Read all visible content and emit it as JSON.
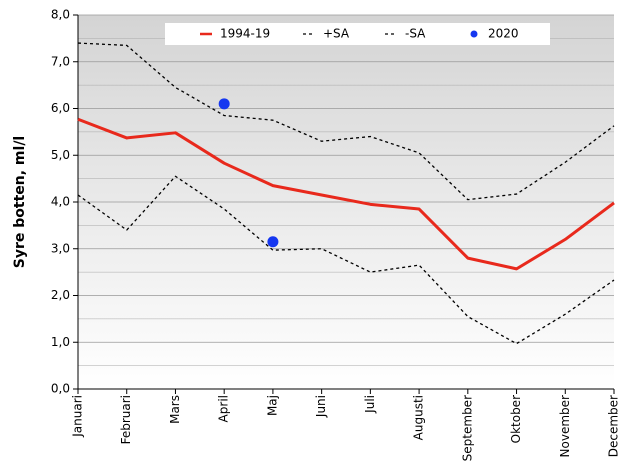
{
  "chart_data": {
    "type": "line",
    "y_label": "Syre botten, ml/l",
    "categories": [
      "Januari",
      "Februari",
      "Mars",
      "April",
      "Maj",
      "Juni",
      "Juli",
      "Augusti",
      "September",
      "Oktober",
      "November",
      "December"
    ],
    "series": [
      {
        "name": "1994-19",
        "color": "#e8291c",
        "style": "solid",
        "values": [
          5.77,
          5.37,
          5.48,
          4.83,
          4.35,
          4.15,
          3.95,
          3.85,
          2.8,
          2.57,
          3.2,
          3.98
        ]
      },
      {
        "name": "+SA",
        "color": "#000000",
        "style": "dashed",
        "values": [
          7.4,
          7.35,
          6.45,
          5.85,
          5.75,
          5.3,
          5.4,
          5.05,
          4.05,
          4.17,
          4.85,
          5.63
        ]
      },
      {
        "name": "-SA",
        "color": "#000000",
        "style": "dashed",
        "values": [
          4.15,
          3.4,
          4.55,
          3.85,
          2.97,
          3.0,
          2.5,
          2.65,
          1.55,
          0.97,
          1.6,
          2.33
        ]
      },
      {
        "name": "2020",
        "color": "#1537f0",
        "style": "marker",
        "values": [
          null,
          null,
          null,
          6.1,
          3.15,
          null,
          null,
          null,
          null,
          null,
          null,
          null
        ]
      }
    ],
    "ylim": [
      0,
      8
    ],
    "yticks": [
      {
        "value": 0,
        "label": "0,0"
      },
      {
        "value": 1,
        "label": "1,0"
      },
      {
        "value": 2,
        "label": "2,0"
      },
      {
        "value": 3,
        "label": "3,0"
      },
      {
        "value": 4,
        "label": "4,0"
      },
      {
        "value": 5,
        "label": "5,0"
      },
      {
        "value": 6,
        "label": "6,0"
      },
      {
        "value": 7,
        "label": "7,0"
      },
      {
        "value": 8,
        "label": "8,0"
      }
    ],
    "y_minor_ticks": [
      0.5,
      1.5,
      2.5,
      3.5,
      4.5,
      5.5,
      6.5,
      7.5
    ],
    "grid": true
  }
}
